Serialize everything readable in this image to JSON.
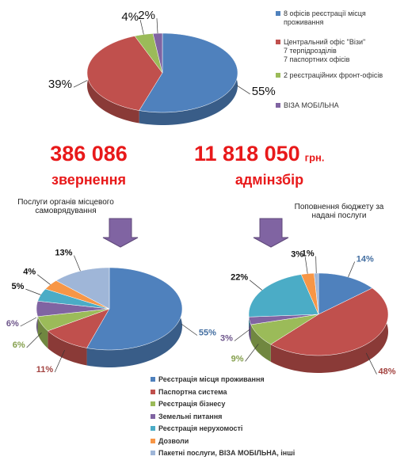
{
  "chart_data": [
    {
      "type": "pie",
      "categories": [
        "8 офісів реєстрації місця проживання",
        "Центральний офіс \"Візи\"\n7 терпідрозділів\n7 паспортних офісів",
        "2 реєстраційних фронт-офісів",
        "ВІЗА МОБІЛЬНА"
      ],
      "values": [
        55,
        39,
        4,
        2
      ],
      "value_labels": [
        "55%",
        "39%",
        "4%",
        "2%"
      ],
      "colors": [
        "#4f81bd",
        "#c0504d",
        "#9bbb59",
        "#8064a2"
      ]
    },
    {
      "type": "pie",
      "categories": [
        "Реєстрація місця проживання",
        "Паспортна система",
        "Реєстрація бізнесу",
        "Земельні питання",
        "Реєстрація нерухомості",
        "Дозволи",
        "Пакетні послуги, ВІЗА МОБІЛЬНА, інші"
      ],
      "colors": [
        "#4f81bd",
        "#c0504d",
        "#9bbb59",
        "#8064a2",
        "#4bacc6",
        "#f79646",
        "#9fb6d8"
      ],
      "series": [
        {
          "name": "Послуги органів місцевого самоврядування",
          "values": [
            55,
            11,
            6,
            6,
            5,
            4,
            13
          ],
          "value_labels": [
            "55%",
            "11%",
            "6%",
            "6%",
            "5%",
            "4%",
            "13%"
          ]
        },
        {
          "name": "Поповнення бюджету за надані послуги",
          "values": [
            14,
            48,
            9,
            3,
            22,
            3,
            1
          ],
          "value_labels": [
            "14%",
            "48%",
            "9%",
            "3%",
            "22%",
            "3%",
            "1%"
          ]
        }
      ]
    }
  ],
  "summary": [
    {
      "value": "386 086",
      "label": "звернення"
    },
    {
      "value": "11 818 050",
      "unit": "грн.",
      "label": "адмінзбір"
    }
  ]
}
